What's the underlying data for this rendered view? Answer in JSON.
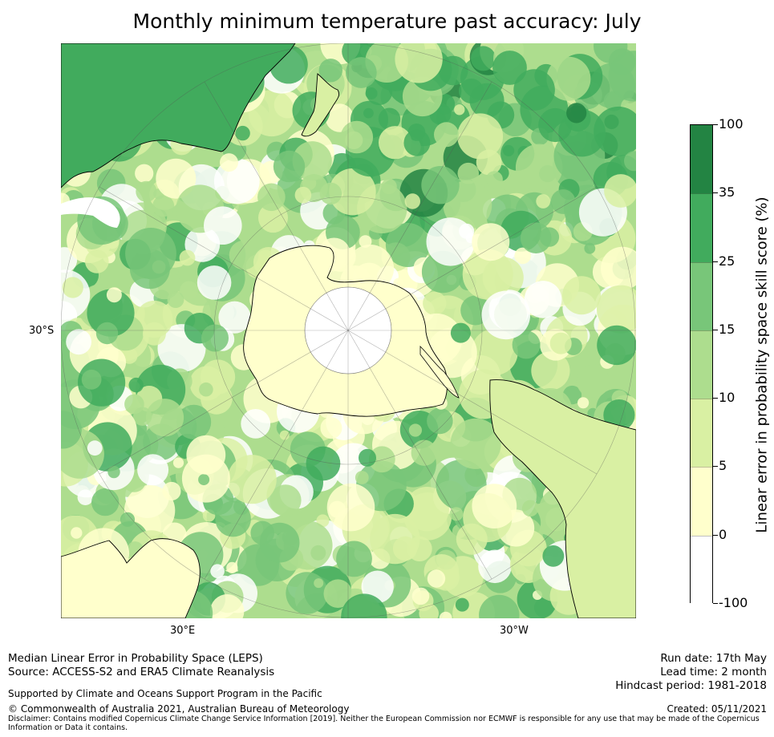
{
  "title": "Monthly minimum temperature past accuracy: July",
  "map": {
    "projection": "south-polar-stereographic",
    "lat_label": "30°S",
    "lon_labels": [
      "30°E",
      "30°W"
    ],
    "colors": [
      "#ffffff",
      "#ffffcc",
      "#d9f0a3",
      "#addd8e",
      "#78c679",
      "#41ab5d",
      "#238443"
    ]
  },
  "colorbar": {
    "title": "Linear error in probability space skill score (%)",
    "ticks": [
      "100",
      "35",
      "25",
      "15",
      "10",
      "5",
      "0",
      "-100"
    ],
    "colors": [
      "#238443",
      "#41ab5d",
      "#78c679",
      "#addd8e",
      "#d9f0a3",
      "#ffffcc",
      "#ffffff"
    ]
  },
  "footer": {
    "line1": "Median Linear Error in Probability Space (LEPS)",
    "line2": "Source: ACCESS-S2 and ERA5 Climate Reanalysis",
    "support": "Supported by Climate and Oceans Support Program in the Pacific",
    "copyright": "© Commonwealth of Australia 2021, Australian Bureau of Meteorology",
    "disclaimer": "Disclaimer: Contains modified Copernicus Climate Change Service Information [2019]. Neither the European Commission nor ECMWF is responsible for any use that may be made of the Copernicus Information or Data it contains.",
    "run_date": "Run date: 17th May",
    "lead_time": "Lead time: 2 month",
    "hindcast": "Hindcast period: 1981-2018",
    "created": "Created: 05/11/2021"
  }
}
